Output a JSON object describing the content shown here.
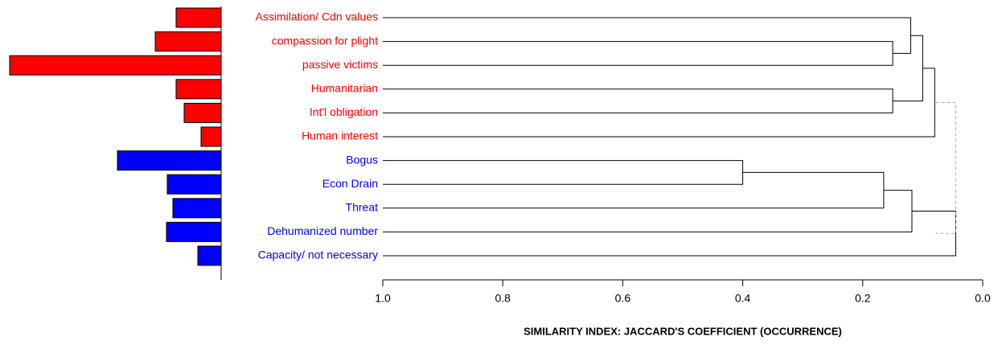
{
  "chart_data": [
    {
      "type": "bar",
      "categories": [
        "Assimilation/ Cdn values",
        "compassion for plight",
        "passive victims",
        "Humanitarian",
        "Int'l obligation",
        "Human interest",
        "Bogus",
        "Econ Drain",
        "Threat",
        "Dehumanized number",
        "Capacity/ not necessary"
      ],
      "values": [
        56,
        82,
        263,
        56,
        46,
        25,
        129,
        67,
        60,
        68,
        29
      ],
      "colors": [
        "#ff0000",
        "#ff0000",
        "#ff0000",
        "#ff0000",
        "#ff0000",
        "#ff0000",
        "#0000ff",
        "#0000ff",
        "#0000ff",
        "#0000ff",
        "#0000ff"
      ]
    },
    {
      "type": "dendrogram",
      "xlabel": "SIMILARITY INDEX: JACCARD'S COEFFICIENT (OCCURRENCE)",
      "xlim": [
        1,
        0
      ],
      "xticks": [
        {
          "value": 1,
          "label": "1.0"
        },
        0.8,
        0.6,
        0.4,
        0.2,
        {
          "value": 0,
          "label": "0.0"
        }
      ],
      "merges": [
        {
          "left": 1,
          "right": 2,
          "height": 0.15
        },
        {
          "left": 0,
          "right": 11,
          "height": 0.12
        },
        {
          "left": 3,
          "right": 4,
          "height": 0.15
        },
        {
          "left": 12,
          "right": 13,
          "height": 0.1
        },
        {
          "left": 14,
          "right": 5,
          "height": 0.08
        },
        {
          "left": 6,
          "right": 7,
          "height": 0.4
        },
        {
          "left": 16,
          "right": 8,
          "height": 0.165
        },
        {
          "left": 17,
          "right": 9,
          "height": 0.118
        },
        {
          "left": 18,
          "right": 10,
          "height": 0.045
        },
        {
          "left": 15,
          "right": 19,
          "height": 0.045,
          "dashed": true
        }
      ]
    }
  ]
}
